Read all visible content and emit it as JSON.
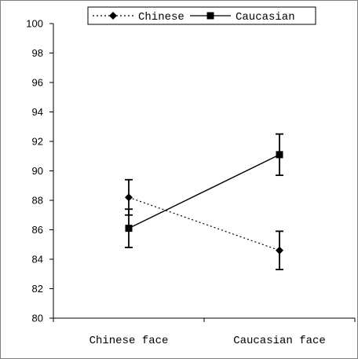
{
  "chart_data": {
    "type": "line",
    "categories": [
      "Chinese face",
      "Caucasian face"
    ],
    "ylim": [
      80,
      100
    ],
    "yticks": [
      80,
      82,
      84,
      86,
      88,
      90,
      92,
      94,
      96,
      98,
      100
    ],
    "series": [
      {
        "name": "Chinese",
        "values": [
          88.2,
          84.6
        ],
        "errors": [
          1.2,
          1.3
        ],
        "line_style": "dotted",
        "marker": "diamond"
      },
      {
        "name": "Caucasian",
        "values": [
          86.1,
          91.1
        ],
        "errors": [
          1.3,
          1.4
        ],
        "line_style": "solid",
        "marker": "square"
      }
    ],
    "legend_position": "top",
    "grid": false,
    "color": "#000000"
  }
}
